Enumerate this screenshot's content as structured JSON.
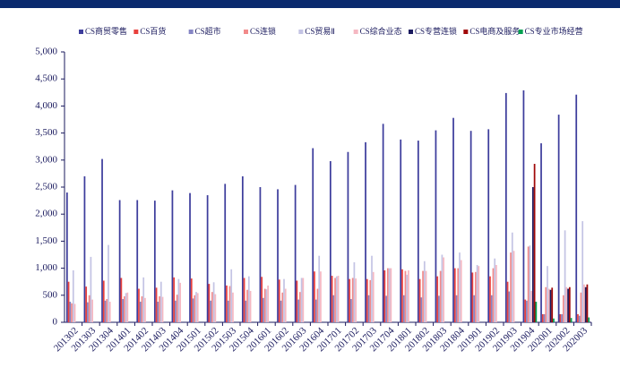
{
  "chart_data": {
    "type": "bar",
    "categories": [
      "201302",
      "201303",
      "201304",
      "201401",
      "201402",
      "201403",
      "201404",
      "201501",
      "201502",
      "201503",
      "201504",
      "201601",
      "201602",
      "201603",
      "201604",
      "201701",
      "201702",
      "201703",
      "201704",
      "201801",
      "201802",
      "201803",
      "201804",
      "201901",
      "201902",
      "201903",
      "201904",
      "202001",
      "202002",
      "202003"
    ],
    "series": [
      {
        "name": "CS商贸零售",
        "color": "#3d3d9c",
        "values": [
          2400,
          2700,
          3020,
          2260,
          2260,
          2250,
          2440,
          2390,
          2350,
          2560,
          2700,
          2500,
          2460,
          2540,
          3220,
          2980,
          3150,
          3330,
          3670,
          3380,
          3360,
          3550,
          3780,
          3540,
          3570,
          4240,
          4290,
          3310,
          3840,
          4210
        ]
      },
      {
        "name": "CS百货",
        "color": "#e8403c",
        "values": [
          750,
          660,
          770,
          820,
          620,
          640,
          830,
          810,
          710,
          680,
          820,
          840,
          790,
          770,
          940,
          860,
          800,
          800,
          960,
          980,
          800,
          850,
          1000,
          920,
          850,
          750,
          420,
          150,
          150,
          150
        ]
      },
      {
        "name": "CS超市",
        "color": "#8585c4",
        "values": [
          380,
          370,
          400,
          430,
          380,
          380,
          400,
          440,
          400,
          400,
          400,
          450,
          400,
          420,
          420,
          500,
          430,
          500,
          490,
          500,
          460,
          490,
          500,
          500,
          500,
          570,
          400,
          150,
          150,
          120
        ]
      },
      {
        "name": "CS连锁",
        "color": "#f28a8a",
        "values": [
          350,
          500,
          430,
          480,
          480,
          480,
          510,
          500,
          560,
          670,
          600,
          620,
          550,
          560,
          620,
          820,
          820,
          780,
          1000,
          950,
          950,
          950,
          1000,
          930,
          1000,
          1290,
          1400,
          650,
          500,
          550
        ]
      },
      {
        "name": "CS贸易Ⅱ",
        "color": "#c4c4e4",
        "values": [
          960,
          1210,
          1430,
          540,
          830,
          750,
          800,
          560,
          740,
          980,
          850,
          610,
          800,
          820,
          1230,
          850,
          1110,
          1230,
          1000,
          880,
          1130,
          1250,
          1290,
          1060,
          1180,
          1660,
          1420,
          1040,
          1700,
          1870
        ]
      },
      {
        "name": "CS综合业态",
        "color": "#f5b8c2",
        "values": [
          340,
          420,
          380,
          550,
          450,
          470,
          730,
          540,
          520,
          550,
          580,
          680,
          620,
          820,
          940,
          860,
          810,
          930,
          1000,
          960,
          950,
          1200,
          1150,
          1040,
          1060,
          1320,
          580,
          620,
          650,
          700
        ]
      },
      {
        "name": "CS专营连锁",
        "color": "#1a1a5e",
        "values": [
          null,
          null,
          null,
          null,
          null,
          null,
          null,
          null,
          null,
          null,
          null,
          null,
          null,
          null,
          null,
          null,
          null,
          null,
          null,
          null,
          null,
          null,
          null,
          null,
          null,
          null,
          2500,
          600,
          620,
          650
        ]
      },
      {
        "name": "CS电商及服务",
        "color": "#a00808",
        "values": [
          null,
          null,
          null,
          null,
          null,
          null,
          null,
          null,
          null,
          null,
          null,
          null,
          null,
          null,
          null,
          null,
          null,
          null,
          null,
          null,
          null,
          null,
          null,
          null,
          null,
          null,
          2930,
          640,
          650,
          700
        ]
      },
      {
        "name": "CS专业市场经营",
        "color": "#00a050",
        "values": [
          null,
          null,
          null,
          null,
          null,
          null,
          null,
          null,
          null,
          null,
          null,
          null,
          null,
          null,
          null,
          null,
          null,
          null,
          null,
          null,
          null,
          null,
          null,
          null,
          null,
          null,
          380,
          70,
          80,
          90
        ]
      }
    ],
    "ylim": [
      0,
      5000
    ],
    "yticks": [
      0,
      500,
      {
        "value": 1000,
        "label": "1,000"
      },
      {
        "value": 1500,
        "label": "1,500"
      },
      {
        "value": 2000,
        "label": "2,000"
      },
      {
        "value": 2500,
        "label": "2,500"
      },
      {
        "value": 3000,
        "label": "3,000"
      },
      {
        "value": 3500,
        "label": "3,500"
      },
      {
        "value": 4000,
        "label": "4,000"
      },
      {
        "value": 4500,
        "label": "4,500"
      },
      {
        "value": 5000,
        "label": "5,000"
      }
    ],
    "legend": "top"
  }
}
